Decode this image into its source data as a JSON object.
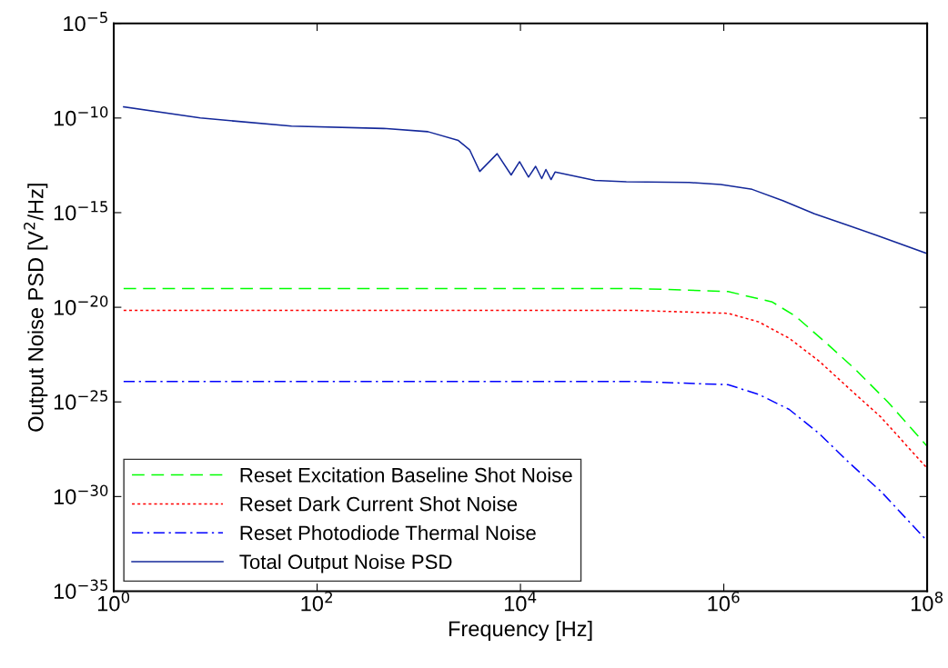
{
  "chart_data": {
    "type": "line",
    "xlabel": "Frequency [Hz]",
    "ylabel": "Output Noise PSD [V$^{2}$/Hz]",
    "log": "xy",
    "grid": false,
    "legend": "bottom left",
    "marker": "none",
    "xlim": [
      1,
      100000000
    ],
    "ylim": [
      1e-35,
      1e-05
    ],
    "xticks": [
      {
        "value": 1,
        "label": "10$^{0}$"
      },
      {
        "value": 100,
        "label": "10$^{2}$"
      },
      {
        "value": 10000,
        "label": "10$^{4}$"
      },
      {
        "value": 1000000,
        "label": "10$^{6}$"
      },
      {
        "value": 100000000,
        "label": "10$^{8}$"
      }
    ],
    "yticks": [
      {
        "value": 1e-35,
        "label": "10$^{−35}$"
      },
      {
        "value": 1e-30,
        "label": "10$^{−30}$"
      },
      {
        "value": 1e-25,
        "label": "10$^{−25}$"
      },
      {
        "value": 1e-20,
        "label": "10$^{−20}$"
      },
      {
        "value": 1e-15,
        "label": "10$^{−15}$"
      },
      {
        "value": 1e-10,
        "label": "10$^{−10}$"
      },
      {
        "value": 1e-05,
        "label": "10$^{−5}$"
      }
    ],
    "series": [
      {
        "name": "Reset Excitation Baseline Shot Noise",
        "color": "#00ff00",
        "line_style": "dashed",
        "x": [
          1.25,
          140000,
          1100000,
          3000000,
          5100000,
          10000000,
          20000000,
          41000000,
          100000000
        ],
        "values": [
          9.8e-20,
          9.8e-20,
          6.8e-20,
          1.9e-20,
          3.3e-21,
          1.4e-22,
          4.8e-24,
          1e-25,
          4.5e-28
        ]
      },
      {
        "name": "Reset Dark Current Shot Noise",
        "color": "#ff0000",
        "line_style": "dotted",
        "x": [
          1.25,
          140000,
          1100000,
          2200000,
          4400000,
          8700000,
          17000000,
          35000000,
          100000000
        ],
        "values": [
          6.8e-21,
          6.8e-21,
          4.8e-21,
          1.7e-21,
          2.3e-22,
          1.4e-23,
          5.2e-25,
          1.6e-26,
          3.1e-29
        ]
      },
      {
        "name": "Reset Photodiode Thermal Noise",
        "color": "#0000ff",
        "line_style": "dashdot",
        "x": [
          1.25,
          140000,
          1100000,
          2200000,
          4400000,
          8700000,
          17000000,
          35000000,
          100000000
        ],
        "values": [
          1.2e-24,
          1.2e-24,
          8.1e-25,
          2.5e-25,
          4e-26,
          2.1e-27,
          6.3e-29,
          1.9e-30,
          4.5e-33
        ]
      },
      {
        "name": "Total Output Noise PSD",
        "color": "#14289a",
        "line_style": "solid",
        "x": [
          1.25,
          7.1,
          56,
          450,
          1230,
          2450,
          3160,
          3980,
          5900,
          8100,
          9800,
          12000,
          14100,
          16200,
          17800,
          20000,
          21900,
          54000,
          110000,
          457000,
          933000,
          1900000,
          3800000,
          7800000,
          16000000,
          32000000,
          100000000
        ],
        "values": [
          3.9e-10,
          1e-10,
          3.7e-11,
          2.8e-11,
          1.9e-11,
          6.5e-12,
          2.1e-12,
          1.5e-13,
          1.3e-12,
          9.8e-14,
          4.9e-13,
          7.6e-14,
          2.8e-13,
          6.3e-14,
          1.9e-13,
          5.6e-14,
          1.4e-13,
          5.1e-14,
          4.3e-14,
          3.9e-14,
          3.1e-14,
          1.7e-14,
          4.3e-15,
          8.7e-16,
          2.3e-16,
          6.3e-17,
          6.9e-18
        ]
      }
    ]
  }
}
